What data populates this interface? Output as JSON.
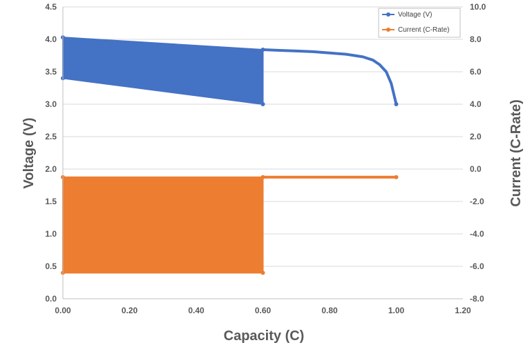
{
  "chart_data": {
    "type": "line",
    "title": "",
    "xlabel": "Capacity (C)",
    "ylabel": "Voltage (V)",
    "y2label": "Current (C-Rate)",
    "xlim": [
      0,
      1.2
    ],
    "ylim": [
      0,
      4.5
    ],
    "y2lim": [
      -8,
      10
    ],
    "x_ticks": [
      "0.00",
      "0.20",
      "0.40",
      "0.60",
      "0.80",
      "1.00",
      "1.20"
    ],
    "y_ticks": [
      "0.0",
      "0.5",
      "1.0",
      "1.5",
      "2.0",
      "2.5",
      "3.0",
      "3.5",
      "4.0",
      "4.5"
    ],
    "y2_ticks": [
      "-8.0",
      "-6.0",
      "-4.0",
      "-2.0",
      "0.0",
      "2.0",
      "4.0",
      "6.0",
      "8.0",
      "10.0"
    ],
    "grid": true,
    "legend_position": "top-right",
    "series": [
      {
        "name": "Voltage (V)",
        "axis": "left",
        "color": "#4472C4",
        "pulse_band": {
          "x_start": 0.0,
          "x_end": 0.6,
          "upper": [
            [
              0.0,
              4.03
            ],
            [
              0.6,
              3.84
            ]
          ],
          "lower": [
            [
              0.0,
              3.4
            ],
            [
              0.6,
              3.0
            ]
          ]
        },
        "values": [
          [
            0.6,
            3.84
          ],
          [
            0.65,
            3.83
          ],
          [
            0.7,
            3.82
          ],
          [
            0.75,
            3.81
          ],
          [
            0.8,
            3.79
          ],
          [
            0.85,
            3.77
          ],
          [
            0.9,
            3.73
          ],
          [
            0.93,
            3.68
          ],
          [
            0.95,
            3.61
          ],
          [
            0.97,
            3.5
          ],
          [
            0.985,
            3.32
          ],
          [
            1.0,
            3.0
          ]
        ]
      },
      {
        "name": "Current (C-Rate)",
        "axis": "right",
        "color": "#ED7D31",
        "pulse_band": {
          "x_start": 0.0,
          "x_end": 0.6,
          "upper": [
            [
              0.0,
              -0.5
            ],
            [
              0.6,
              -0.5
            ]
          ],
          "lower": [
            [
              0.0,
              -6.4
            ],
            [
              0.6,
              -6.4
            ]
          ]
        },
        "values": [
          [
            0.6,
            -0.5
          ],
          [
            1.0,
            -0.5
          ]
        ]
      }
    ]
  }
}
